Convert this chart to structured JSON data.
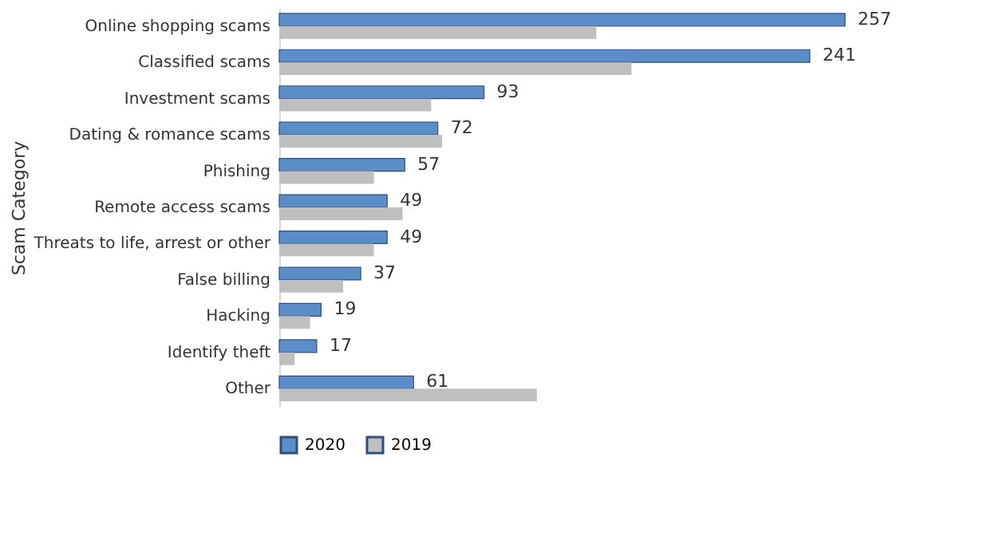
{
  "chart_data": {
    "type": "bar",
    "orientation": "horizontal",
    "ylabel": "Scam Category",
    "categories": [
      "Online shopping scams",
      "Classified scams",
      "Investment scams",
      "Dating & romance scams",
      "Phishing",
      "Remote access scams",
      "Threats to life, arrest or other",
      "False billing",
      "Hacking",
      "Identify theft",
      "Other"
    ],
    "series": [
      {
        "name": "2020",
        "color": "#5b8ec8",
        "values": [
          257,
          241,
          93,
          72,
          57,
          49,
          49,
          37,
          19,
          17,
          61
        ],
        "value_labels": [
          "257",
          "241",
          "93",
          "72",
          "57",
          "49",
          "49",
          "37",
          "19",
          "17",
          "61"
        ]
      },
      {
        "name": "2019",
        "color": "#bfbfbf",
        "values": [
          144,
          160,
          69,
          74,
          43,
          56,
          43,
          29,
          14,
          7,
          117
        ]
      }
    ],
    "legend": "bottom",
    "grid": false
  }
}
